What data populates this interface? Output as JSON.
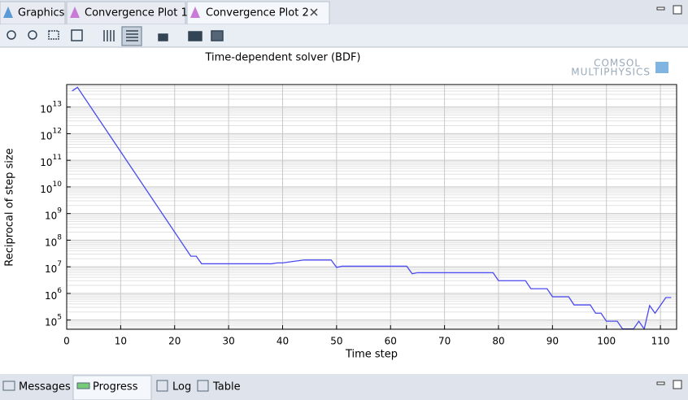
{
  "ui": {
    "tabs": [
      "Graphics",
      "Convergence Plot 1",
      "Convergence Plot 2"
    ],
    "bottom_tabs": [
      "Messages",
      "Progress",
      "Log",
      "Table"
    ],
    "logo": [
      "COMSOL",
      "MULTIPHYSICS"
    ]
  },
  "chart_data": {
    "type": "line",
    "title": "Time-dependent solver (BDF)",
    "x_label": "Time step",
    "y_label": "Reciprocal of step size",
    "ylog": true,
    "grid": true,
    "xlim": [
      0,
      113
    ],
    "xticks": [
      0,
      10,
      20,
      30,
      40,
      50,
      60,
      70,
      80,
      90,
      100,
      110
    ],
    "ylim": [
      45000,
      70000000000000
    ],
    "yticks": [
      {
        "value": 100000,
        "label": "10",
        "exponent": "5"
      },
      {
        "value": 1000000,
        "label": "10",
        "exponent": "6"
      },
      {
        "value": 10000000,
        "label": "10",
        "exponent": "7"
      },
      {
        "value": 100000000,
        "label": "10",
        "exponent": "8"
      },
      {
        "value": 1000000000,
        "label": "10",
        "exponent": "9"
      },
      {
        "value": 10000000000,
        "label": "10",
        "exponent": "10"
      },
      {
        "value": 100000000000,
        "label": "10",
        "exponent": "11"
      },
      {
        "value": 1000000000000,
        "label": "10",
        "exponent": "12"
      },
      {
        "value": 10000000000000,
        "label": "10",
        "exponent": "13"
      }
    ],
    "x": [
      1,
      2,
      23,
      24,
      25,
      38,
      39,
      40,
      42,
      44,
      49,
      50,
      51,
      63,
      64,
      65,
      79,
      80,
      85,
      86,
      89,
      90,
      93,
      94,
      97,
      98,
      99,
      100,
      102,
      103,
      105,
      106,
      107,
      108,
      109,
      111,
      112
    ],
    "series": [
      {
        "color": "#4a4af0",
        "values": [
          40000000000000,
          55000000000000,
          25000000,
          25000000,
          13000000,
          13000000,
          14000000,
          14000000,
          16000000,
          18000000,
          18000000,
          9500000,
          10500000,
          10500000,
          5500000,
          6000000,
          6000000,
          3000000,
          3000000,
          1500000,
          1500000,
          750000,
          750000,
          370000,
          370000,
          180000,
          180000,
          90000,
          90000,
          46000,
          46000,
          90000,
          46000,
          350000,
          180000,
          700000,
          700000
        ]
      }
    ]
  }
}
